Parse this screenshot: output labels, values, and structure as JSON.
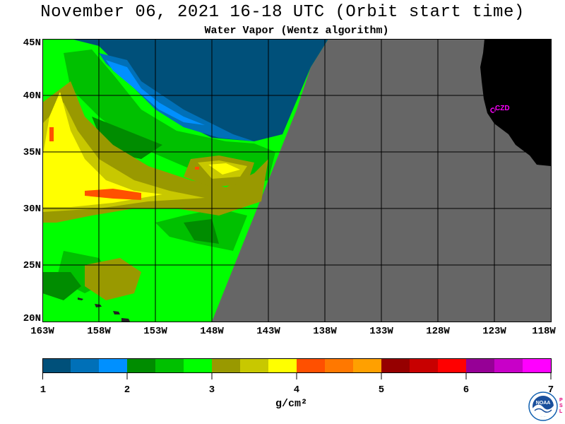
{
  "header": {
    "title": "November 06, 2021  16-18 UTC  (Orbit start time)",
    "subtitle": "Water Vapor (Wentz algorithm)"
  },
  "map": {
    "lat_labels": [
      "45N",
      "40N",
      "35N",
      "30N",
      "25N",
      "20N"
    ],
    "lon_labels": [
      "163W",
      "158W",
      "153W",
      "148W",
      "143W",
      "138W",
      "133W",
      "128W",
      "123W",
      "118W"
    ],
    "station_label": "CZD",
    "colors": {
      "land": "#000000",
      "nodata": "#666666",
      "station": "#ff00ff",
      "grid": "#000000"
    }
  },
  "colorbar": {
    "ticks": [
      "1",
      "2",
      "3",
      "4",
      "5",
      "6",
      "7"
    ],
    "unit": "g/cm²",
    "colors": [
      "#00507a",
      "#0070b8",
      "#0090ff",
      "#008c00",
      "#00c000",
      "#00ff00",
      "#999900",
      "#c8c800",
      "#ffff00",
      "#ff5000",
      "#ff7800",
      "#ffa000",
      "#960000",
      "#c80000",
      "#ff0000",
      "#960096",
      "#c800c8",
      "#ff00ff"
    ]
  },
  "logo": {
    "text": "NOAA",
    "side_text": "PSL"
  }
}
